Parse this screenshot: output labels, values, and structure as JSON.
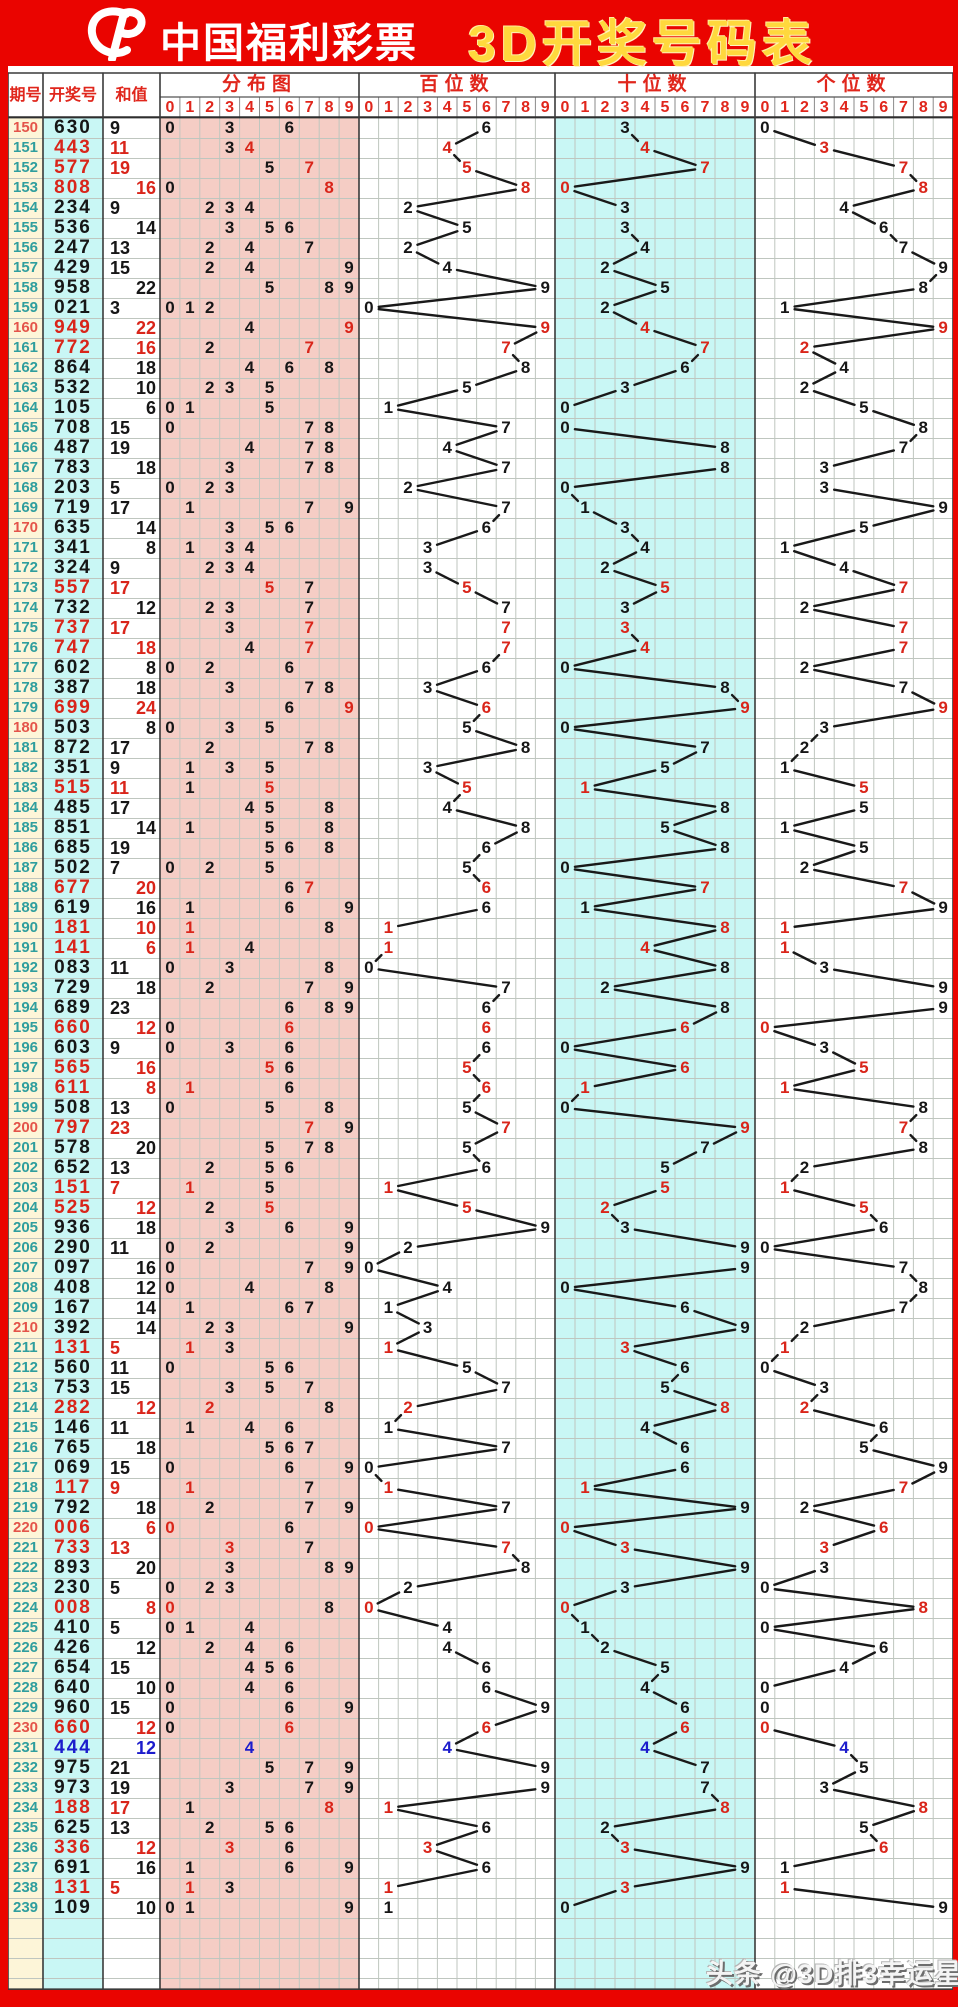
{
  "banner": {
    "brand": "中国福利彩票",
    "title": "3D开奖号码表",
    "logo": "china-welfare-lottery-logo"
  },
  "table_headers": {
    "period": "期号",
    "number": "开奖号",
    "sum": "和值",
    "sections": [
      {
        "key": "distribution",
        "label": "分布图"
      },
      {
        "key": "hundreds",
        "label": "百位数"
      },
      {
        "key": "tens",
        "label": "十位数"
      },
      {
        "key": "units",
        "label": "个位数"
      }
    ],
    "digit_labels": [
      "0",
      "1",
      "2",
      "3",
      "4",
      "5",
      "6",
      "7",
      "8",
      "9"
    ]
  },
  "watermark": "头条 @3D排3幸运星",
  "colors": {
    "banner_red": "#ea0400",
    "title_yellow": "#ffd83d",
    "header_red": "#e0261c",
    "number_black": "#161616",
    "number_red": "#d9251a",
    "number_blue": "#1c1ccc",
    "period_teal": "#2f9e9e",
    "period_red": "#e4544a",
    "distribution_bg": "#f5cdc5",
    "cyan_bg": "#c9f7f5",
    "cream_bg": "#fdf5d8",
    "grid_line": "#bfc6bf",
    "trend_line": "#191919"
  },
  "chart_data": {
    "type": "table",
    "title": "3D开奖号码表",
    "description": "China Welfare Lottery 3D trend chart: period, 3-digit winning number, digit sum (odd left / even right), digit distribution 0-9, and hundreds/tens/units digit positions joined by trend lines. style: black=all different, pair-red=two equal digits, triple-blue=three equal digits.",
    "rows": [
      {
        "period": "150",
        "num": "630",
        "sum": 9,
        "style": "black",
        "period_style": "red"
      },
      {
        "period": "151",
        "num": "443",
        "sum": 11,
        "style": "pair-red",
        "period_style": "teal"
      },
      {
        "period": "152",
        "num": "577",
        "sum": 19,
        "style": "pair-red",
        "period_style": "teal"
      },
      {
        "period": "153",
        "num": "808",
        "sum": 16,
        "style": "pair-red",
        "period_style": "teal"
      },
      {
        "period": "154",
        "num": "234",
        "sum": 9,
        "style": "black",
        "period_style": "teal"
      },
      {
        "period": "155",
        "num": "536",
        "sum": 14,
        "style": "black",
        "period_style": "teal"
      },
      {
        "period": "156",
        "num": "247",
        "sum": 13,
        "style": "black",
        "period_style": "teal"
      },
      {
        "period": "157",
        "num": "429",
        "sum": 15,
        "style": "black",
        "period_style": "teal"
      },
      {
        "period": "158",
        "num": "958",
        "sum": 22,
        "style": "black",
        "period_style": "teal"
      },
      {
        "period": "159",
        "num": "021",
        "sum": 3,
        "style": "black",
        "period_style": "teal"
      },
      {
        "period": "160",
        "num": "949",
        "sum": 22,
        "style": "pair-red",
        "period_style": "red"
      },
      {
        "period": "161",
        "num": "772",
        "sum": 16,
        "style": "pair-red",
        "period_style": "teal"
      },
      {
        "period": "162",
        "num": "864",
        "sum": 18,
        "style": "black",
        "period_style": "teal"
      },
      {
        "period": "163",
        "num": "532",
        "sum": 10,
        "style": "black",
        "period_style": "teal"
      },
      {
        "period": "164",
        "num": "105",
        "sum": 6,
        "style": "black",
        "period_style": "teal"
      },
      {
        "period": "165",
        "num": "708",
        "sum": 15,
        "style": "black",
        "period_style": "teal"
      },
      {
        "period": "166",
        "num": "487",
        "sum": 19,
        "style": "black",
        "period_style": "teal"
      },
      {
        "period": "167",
        "num": "783",
        "sum": 18,
        "style": "black",
        "period_style": "teal"
      },
      {
        "period": "168",
        "num": "203",
        "sum": 5,
        "style": "black",
        "period_style": "teal"
      },
      {
        "period": "169",
        "num": "719",
        "sum": 17,
        "style": "black",
        "period_style": "teal"
      },
      {
        "period": "170",
        "num": "635",
        "sum": 14,
        "style": "black",
        "period_style": "red"
      },
      {
        "period": "171",
        "num": "341",
        "sum": 8,
        "style": "black",
        "period_style": "teal"
      },
      {
        "period": "172",
        "num": "324",
        "sum": 9,
        "style": "black",
        "period_style": "teal"
      },
      {
        "period": "173",
        "num": "557",
        "sum": 17,
        "style": "pair-red",
        "period_style": "teal"
      },
      {
        "period": "174",
        "num": "732",
        "sum": 12,
        "style": "black",
        "period_style": "teal"
      },
      {
        "period": "175",
        "num": "737",
        "sum": 17,
        "style": "pair-red",
        "period_style": "teal"
      },
      {
        "period": "176",
        "num": "747",
        "sum": 18,
        "style": "pair-red",
        "period_style": "teal"
      },
      {
        "period": "177",
        "num": "602",
        "sum": 8,
        "style": "black",
        "period_style": "teal"
      },
      {
        "period": "178",
        "num": "387",
        "sum": 18,
        "style": "black",
        "period_style": "teal"
      },
      {
        "period": "179",
        "num": "699",
        "sum": 24,
        "style": "pair-red",
        "period_style": "teal"
      },
      {
        "period": "180",
        "num": "503",
        "sum": 8,
        "style": "black",
        "period_style": "red"
      },
      {
        "period": "181",
        "num": "872",
        "sum": 17,
        "style": "black",
        "period_style": "teal"
      },
      {
        "period": "182",
        "num": "351",
        "sum": 9,
        "style": "black",
        "period_style": "teal"
      },
      {
        "period": "183",
        "num": "515",
        "sum": 11,
        "style": "pair-red",
        "period_style": "teal"
      },
      {
        "period": "184",
        "num": "485",
        "sum": 17,
        "style": "black",
        "period_style": "teal"
      },
      {
        "period": "185",
        "num": "851",
        "sum": 14,
        "style": "black",
        "period_style": "teal"
      },
      {
        "period": "186",
        "num": "685",
        "sum": 19,
        "style": "black",
        "period_style": "teal"
      },
      {
        "period": "187",
        "num": "502",
        "sum": 7,
        "style": "black",
        "period_style": "teal"
      },
      {
        "period": "188",
        "num": "677",
        "sum": 20,
        "style": "pair-red",
        "period_style": "teal"
      },
      {
        "period": "189",
        "num": "619",
        "sum": 16,
        "style": "black",
        "period_style": "teal"
      },
      {
        "period": "190",
        "num": "181",
        "sum": 10,
        "style": "pair-red",
        "period_style": "teal"
      },
      {
        "period": "191",
        "num": "141",
        "sum": 6,
        "style": "pair-red",
        "period_style": "teal"
      },
      {
        "period": "192",
        "num": "083",
        "sum": 11,
        "style": "black",
        "period_style": "teal"
      },
      {
        "period": "193",
        "num": "729",
        "sum": 18,
        "style": "black",
        "period_style": "teal"
      },
      {
        "period": "194",
        "num": "689",
        "sum": 23,
        "style": "black",
        "period_style": "teal"
      },
      {
        "period": "195",
        "num": "660",
        "sum": 12,
        "style": "pair-red",
        "period_style": "teal"
      },
      {
        "period": "196",
        "num": "603",
        "sum": 9,
        "style": "black",
        "period_style": "teal"
      },
      {
        "period": "197",
        "num": "565",
        "sum": 16,
        "style": "pair-red",
        "period_style": "teal"
      },
      {
        "period": "198",
        "num": "611",
        "sum": 8,
        "style": "pair-red",
        "period_style": "teal"
      },
      {
        "period": "199",
        "num": "508",
        "sum": 13,
        "style": "black",
        "period_style": "teal"
      },
      {
        "period": "200",
        "num": "797",
        "sum": 23,
        "style": "pair-red",
        "period_style": "red"
      },
      {
        "period": "201",
        "num": "578",
        "sum": 20,
        "style": "black",
        "period_style": "teal"
      },
      {
        "period": "202",
        "num": "652",
        "sum": 13,
        "style": "black",
        "period_style": "teal"
      },
      {
        "period": "203",
        "num": "151",
        "sum": 7,
        "style": "pair-red",
        "period_style": "teal"
      },
      {
        "period": "204",
        "num": "525",
        "sum": 12,
        "style": "pair-red",
        "period_style": "teal"
      },
      {
        "period": "205",
        "num": "936",
        "sum": 18,
        "style": "black",
        "period_style": "teal"
      },
      {
        "period": "206",
        "num": "290",
        "sum": 11,
        "style": "black",
        "period_style": "teal"
      },
      {
        "period": "207",
        "num": "097",
        "sum": 16,
        "style": "black",
        "period_style": "teal"
      },
      {
        "period": "208",
        "num": "408",
        "sum": 12,
        "style": "black",
        "period_style": "teal"
      },
      {
        "period": "209",
        "num": "167",
        "sum": 14,
        "style": "black",
        "period_style": "teal"
      },
      {
        "period": "210",
        "num": "392",
        "sum": 14,
        "style": "black",
        "period_style": "red"
      },
      {
        "period": "211",
        "num": "131",
        "sum": 5,
        "style": "pair-red",
        "period_style": "teal"
      },
      {
        "period": "212",
        "num": "560",
        "sum": 11,
        "style": "black",
        "period_style": "teal"
      },
      {
        "period": "213",
        "num": "753",
        "sum": 15,
        "style": "black",
        "period_style": "teal"
      },
      {
        "period": "214",
        "num": "282",
        "sum": 12,
        "style": "pair-red",
        "period_style": "teal"
      },
      {
        "period": "215",
        "num": "146",
        "sum": 11,
        "style": "black",
        "period_style": "teal"
      },
      {
        "period": "216",
        "num": "765",
        "sum": 18,
        "style": "black",
        "period_style": "teal"
      },
      {
        "period": "217",
        "num": "069",
        "sum": 15,
        "style": "black",
        "period_style": "teal"
      },
      {
        "period": "218",
        "num": "117",
        "sum": 9,
        "style": "pair-red",
        "period_style": "teal"
      },
      {
        "period": "219",
        "num": "792",
        "sum": 18,
        "style": "black",
        "period_style": "teal"
      },
      {
        "period": "220",
        "num": "006",
        "sum": 6,
        "style": "pair-red",
        "period_style": "red"
      },
      {
        "period": "221",
        "num": "733",
        "sum": 13,
        "style": "pair-red",
        "period_style": "teal"
      },
      {
        "period": "222",
        "num": "893",
        "sum": 20,
        "style": "black",
        "period_style": "teal"
      },
      {
        "period": "223",
        "num": "230",
        "sum": 5,
        "style": "black",
        "period_style": "teal"
      },
      {
        "period": "224",
        "num": "008",
        "sum": 8,
        "style": "pair-red",
        "period_style": "teal"
      },
      {
        "period": "225",
        "num": "410",
        "sum": 5,
        "style": "black",
        "period_style": "teal"
      },
      {
        "period": "226",
        "num": "426",
        "sum": 12,
        "style": "black",
        "period_style": "teal"
      },
      {
        "period": "227",
        "num": "654",
        "sum": 15,
        "style": "black",
        "period_style": "teal"
      },
      {
        "period": "228",
        "num": "640",
        "sum": 10,
        "style": "black",
        "period_style": "teal"
      },
      {
        "period": "229",
        "num": "960",
        "sum": 15,
        "style": "black",
        "period_style": "teal"
      },
      {
        "period": "230",
        "num": "660",
        "sum": 12,
        "style": "pair-red",
        "period_style": "red"
      },
      {
        "period": "231",
        "num": "444",
        "sum": 12,
        "style": "triple-blue",
        "period_style": "teal"
      },
      {
        "period": "232",
        "num": "975",
        "sum": 21,
        "style": "black",
        "period_style": "teal"
      },
      {
        "period": "233",
        "num": "973",
        "sum": 19,
        "style": "black",
        "period_style": "teal"
      },
      {
        "period": "234",
        "num": "188",
        "sum": 17,
        "style": "pair-red",
        "period_style": "teal"
      },
      {
        "period": "235",
        "num": "625",
        "sum": 13,
        "style": "black",
        "period_style": "teal"
      },
      {
        "period": "236",
        "num": "336",
        "sum": 12,
        "style": "pair-red",
        "period_style": "teal"
      },
      {
        "period": "237",
        "num": "691",
        "sum": 16,
        "style": "black",
        "period_style": "teal"
      },
      {
        "period": "238",
        "num": "131",
        "sum": 5,
        "style": "pair-red",
        "period_style": "teal"
      },
      {
        "period": "239",
        "num": "109",
        "sum": 10,
        "style": "black",
        "period_style": "teal"
      }
    ]
  }
}
